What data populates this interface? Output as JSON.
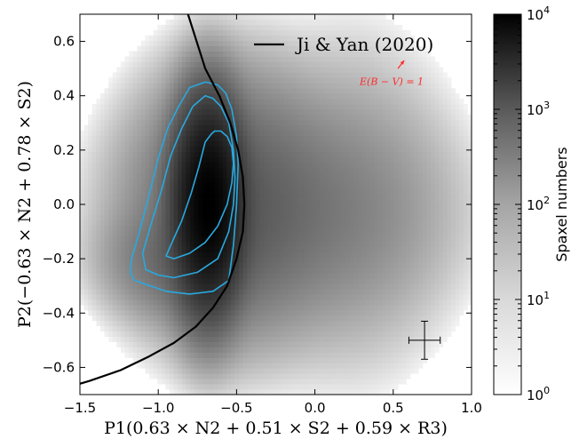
{
  "chart_data": {
    "type": "heatmap",
    "subtype": "2D histogram (log color scale) with contours, curve and arrow",
    "xlabel": "P1(0.63 × N2 + 0.51 × S2 + 0.59 × R3)",
    "ylabel": "P2(−0.63 × N2 + 0.78 × S2)",
    "xlim": [
      -1.5,
      1.0
    ],
    "ylim": [
      -0.7,
      0.7
    ],
    "x_ticks": [
      -1.5,
      -1.0,
      -0.5,
      0.0,
      0.5,
      1.0
    ],
    "x_tick_labels": [
      "−1.5",
      "−1.0",
      "−0.5",
      "0.0",
      "0.5",
      "1.0"
    ],
    "y_ticks": [
      -0.6,
      -0.4,
      -0.2,
      0.0,
      0.2,
      0.4,
      0.6
    ],
    "y_tick_labels": [
      "−0.6",
      "−0.4",
      "−0.2",
      "0.0",
      "0.2",
      "0.4",
      "0.6"
    ],
    "colorbar": {
      "label": "Spaxel numbers",
      "scale": "log",
      "range": [
        1,
        10000
      ],
      "tick_values": [
        1,
        10,
        100,
        1000,
        10000
      ],
      "tick_base": "10",
      "tick_exponents": [
        "0",
        "1",
        "2",
        "3",
        "4"
      ],
      "colormap": "Greys"
    },
    "density_clumps": [
      {
        "x": -0.68,
        "y": 0.0,
        "sx": 0.1,
        "sy": 0.17,
        "peak": 10000
      },
      {
        "x": -0.55,
        "y": 0.0,
        "sx": 0.28,
        "sy": 0.22,
        "peak": 300
      },
      {
        "x": -0.2,
        "y": -0.02,
        "sx": 0.45,
        "sy": 0.2,
        "peak": 110
      },
      {
        "x": -0.85,
        "y": -0.2,
        "sx": 0.22,
        "sy": 0.1,
        "peak": 180
      },
      {
        "x": 0.25,
        "y": 0.0,
        "sx": 0.3,
        "sy": 0.3,
        "peak": 20
      }
    ],
    "contours": [
      {
        "name": "outer",
        "color": "#29a9e0",
        "x": [
          -0.7,
          -0.8,
          -0.87,
          -0.94,
          -1.0,
          -1.06,
          -1.12,
          -1.17,
          -1.18,
          -1.15,
          -1.05,
          -0.95,
          -0.8,
          -0.65,
          -0.55,
          -0.52,
          -0.5,
          -0.49,
          -0.5,
          -0.53,
          -0.57,
          -0.62,
          -0.7
        ],
        "y": [
          0.45,
          0.43,
          0.36,
          0.28,
          0.17,
          0.03,
          -0.1,
          -0.2,
          -0.25,
          -0.28,
          -0.3,
          -0.32,
          -0.33,
          -0.32,
          -0.28,
          -0.15,
          0.0,
          0.15,
          0.25,
          0.35,
          0.41,
          0.44,
          0.45
        ]
      },
      {
        "name": "middle",
        "color": "#29a9e0",
        "x": [
          -0.7,
          -0.78,
          -0.85,
          -0.92,
          -0.98,
          -1.05,
          -1.1,
          -1.08,
          -1.0,
          -0.9,
          -0.75,
          -0.62,
          -0.55,
          -0.52,
          -0.51,
          -0.52,
          -0.55,
          -0.6,
          -0.65,
          -0.7
        ],
        "y": [
          0.4,
          0.36,
          0.28,
          0.18,
          0.05,
          -0.08,
          -0.18,
          -0.24,
          -0.26,
          -0.27,
          -0.25,
          -0.2,
          -0.1,
          0.0,
          0.1,
          0.2,
          0.3,
          0.36,
          0.39,
          0.4
        ]
      },
      {
        "name": "inner",
        "color": "#29a9e0",
        "x": [
          -0.66,
          -0.7,
          -0.74,
          -0.79,
          -0.85,
          -0.92,
          -0.95,
          -0.9,
          -0.8,
          -0.7,
          -0.62,
          -0.56,
          -0.53,
          -0.52,
          -0.53,
          -0.56,
          -0.6,
          -0.64,
          -0.66
        ],
        "y": [
          0.26,
          0.23,
          0.14,
          0.04,
          -0.06,
          -0.15,
          -0.19,
          -0.2,
          -0.18,
          -0.14,
          -0.08,
          0.0,
          0.08,
          0.15,
          0.21,
          0.25,
          0.27,
          0.27,
          0.26
        ]
      }
    ],
    "curve": {
      "name": "Ji & Yan (2020)",
      "color": "#000000",
      "x": [
        -0.46,
        -0.45,
        -0.46,
        -0.49,
        -0.54,
        -0.61,
        -0.7,
        -0.81,
        -0.94,
        -1.09,
        -1.26,
        -1.5
      ],
      "y": [
        -0.28,
        -0.2,
        -0.1,
        0.0,
        0.1,
        0.2,
        0.3,
        0.4,
        0.5,
        0.6,
        0.7,
        -0.66
      ],
      "x_upper": [
        -0.45,
        -0.46,
        -0.49,
        -0.54,
        -0.61,
        -0.7,
        -0.81
      ],
      "y_upper": [
        0.0,
        0.1,
        0.2,
        0.3,
        0.4,
        0.5,
        0.7
      ],
      "x_lower": [
        -0.45,
        -0.46,
        -0.5,
        -0.56,
        -0.65,
        -0.76,
        -0.9,
        -1.06,
        -1.24,
        -1.44,
        -1.5
      ],
      "y_lower": [
        0.0,
        -0.1,
        -0.2,
        -0.3,
        -0.38,
        -0.45,
        -0.51,
        -0.56,
        -0.61,
        -0.65,
        -0.66
      ]
    },
    "legend": {
      "label": "Ji & Yan (2020)",
      "placement": "top-right"
    },
    "annotation": {
      "text": "E(B − V) = 1",
      "color": "#ff2a2a",
      "arrow": {
        "x0": 0.53,
        "y0": 0.5,
        "x1": 0.57,
        "y1": 0.53
      }
    },
    "error_bar": {
      "x": 0.7,
      "y": -0.5,
      "xerr": 0.1,
      "yerr": 0.07
    }
  }
}
